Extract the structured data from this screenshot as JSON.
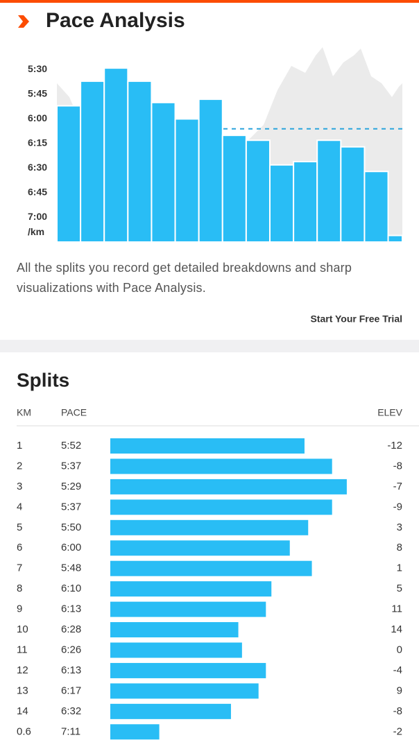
{
  "header": {
    "title": "Pace Analysis"
  },
  "chart_data": {
    "type": "bar",
    "color": "#29bdf5",
    "ylim": [
      435,
      315
    ],
    "yticks": [
      {
        "value": 330,
        "label": "5:30"
      },
      {
        "value": 345,
        "label": "5:45"
      },
      {
        "value": 360,
        "label": "6:00"
      },
      {
        "value": 375,
        "label": "6:15"
      },
      {
        "value": 390,
        "label": "6:30"
      },
      {
        "value": 405,
        "label": "6:45"
      },
      {
        "value": 420,
        "label": "7:00"
      }
    ],
    "y_unit": "/km",
    "values": [
      352,
      337,
      329,
      337,
      350,
      360,
      348,
      370,
      373,
      388,
      386,
      373,
      377,
      392,
      431
    ],
    "average": 366
  },
  "description": "All the splits you record get detailed breakdowns and sharp visualizations with Pace Analysis.",
  "cta": "Start Your Free Trial",
  "splits": {
    "title": "Splits",
    "columns": [
      "KM",
      "PACE",
      "ELEV"
    ],
    "rows": [
      [
        "1",
        "5:52",
        -12
      ],
      [
        "2",
        "5:37",
        -8
      ],
      [
        "3",
        "5:29",
        -7
      ],
      [
        "4",
        "5:37",
        -9
      ],
      [
        "5",
        "5:50",
        3
      ],
      [
        "6",
        "6:00",
        8
      ],
      [
        "7",
        "5:48",
        1
      ],
      [
        "8",
        "6:10",
        5
      ],
      [
        "9",
        "6:13",
        11
      ],
      [
        "10",
        "6:28",
        14
      ],
      [
        "11",
        "6:26",
        0
      ],
      [
        "12",
        "6:13",
        -4
      ],
      [
        "13",
        "6:17",
        9
      ],
      [
        "14",
        "6:32",
        -8
      ],
      [
        "0.6",
        "7:11",
        -2
      ]
    ]
  }
}
